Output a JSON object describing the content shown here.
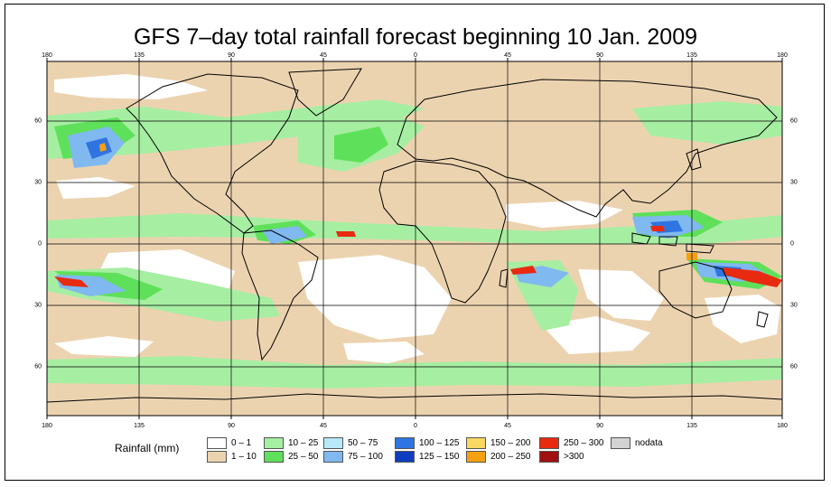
{
  "title": "GFS 7–day total rainfall forecast beginning 10 Jan. 2009",
  "axes": {
    "lon_labels": [
      "180",
      "135",
      "90",
      "45",
      "0",
      "45",
      "90",
      "135",
      "180"
    ],
    "lat_labels": [
      "60",
      "30",
      "0",
      "30",
      "60"
    ]
  },
  "legend": {
    "title": "Rainfall (mm)",
    "items": [
      {
        "label": "0 – 1",
        "color": "#ffffff"
      },
      {
        "label": "1 – 10",
        "color": "#ecd3b0"
      },
      {
        "label": "10 – 25",
        "color": "#a6eea2"
      },
      {
        "label": "25 – 50",
        "color": "#5fe05a"
      },
      {
        "label": "50 – 75",
        "color": "#b7eaf8"
      },
      {
        "label": "75 – 100",
        "color": "#80b8f0"
      },
      {
        "label": "100 – 125",
        "color": "#2f74e0"
      },
      {
        "label": "125 – 150",
        "color": "#0f3fc0"
      },
      {
        "label": "150 – 200",
        "color": "#f8d860"
      },
      {
        "label": "200 – 250",
        "color": "#f5a010"
      },
      {
        "label": "250 – 300",
        "color": "#e82a10"
      },
      {
        "label": ">300",
        "color": "#a01010"
      },
      {
        "label": "nodata",
        "color": "#d3d3d3"
      }
    ]
  }
}
